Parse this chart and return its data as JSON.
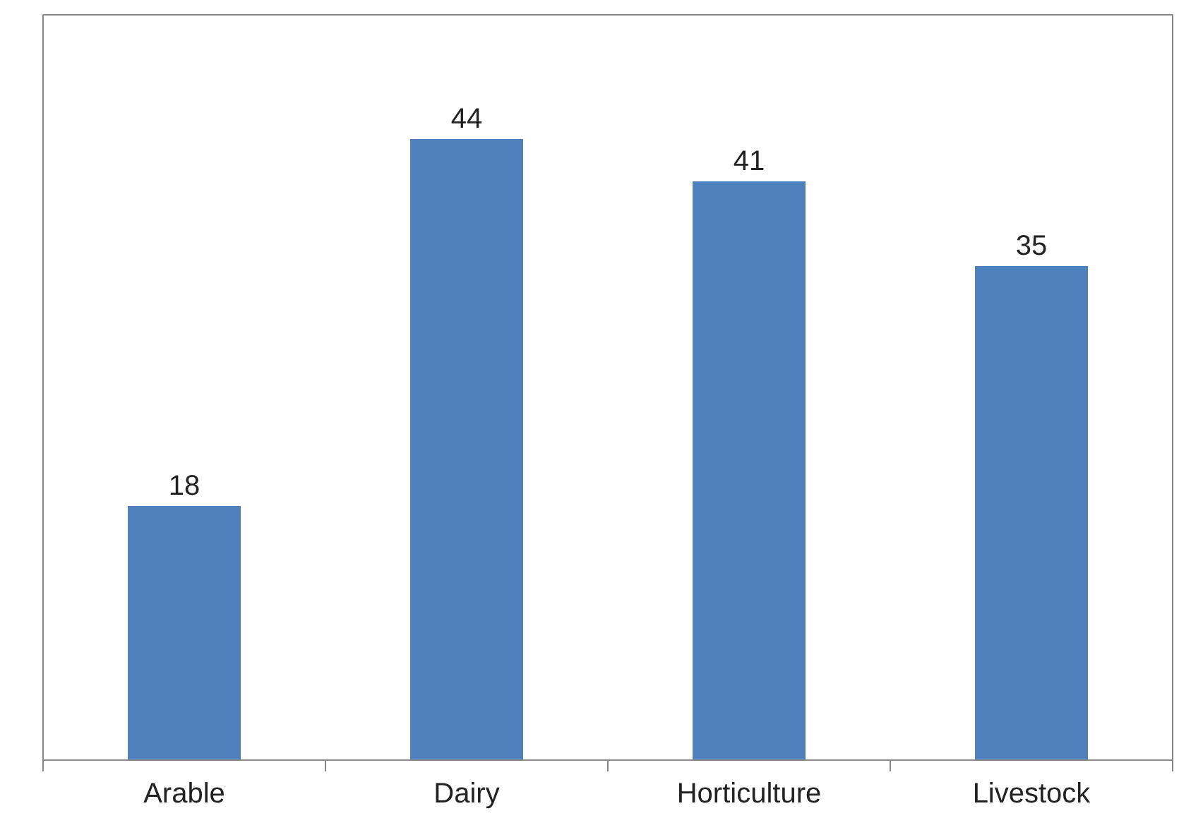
{
  "chart_data": {
    "type": "bar",
    "categories": [
      "Arable",
      "Dairy",
      "Horticulture",
      "Livestock"
    ],
    "values": [
      18,
      44,
      41,
      35
    ],
    "color": "#4f81bd",
    "data_labels": true,
    "grid": false
  }
}
